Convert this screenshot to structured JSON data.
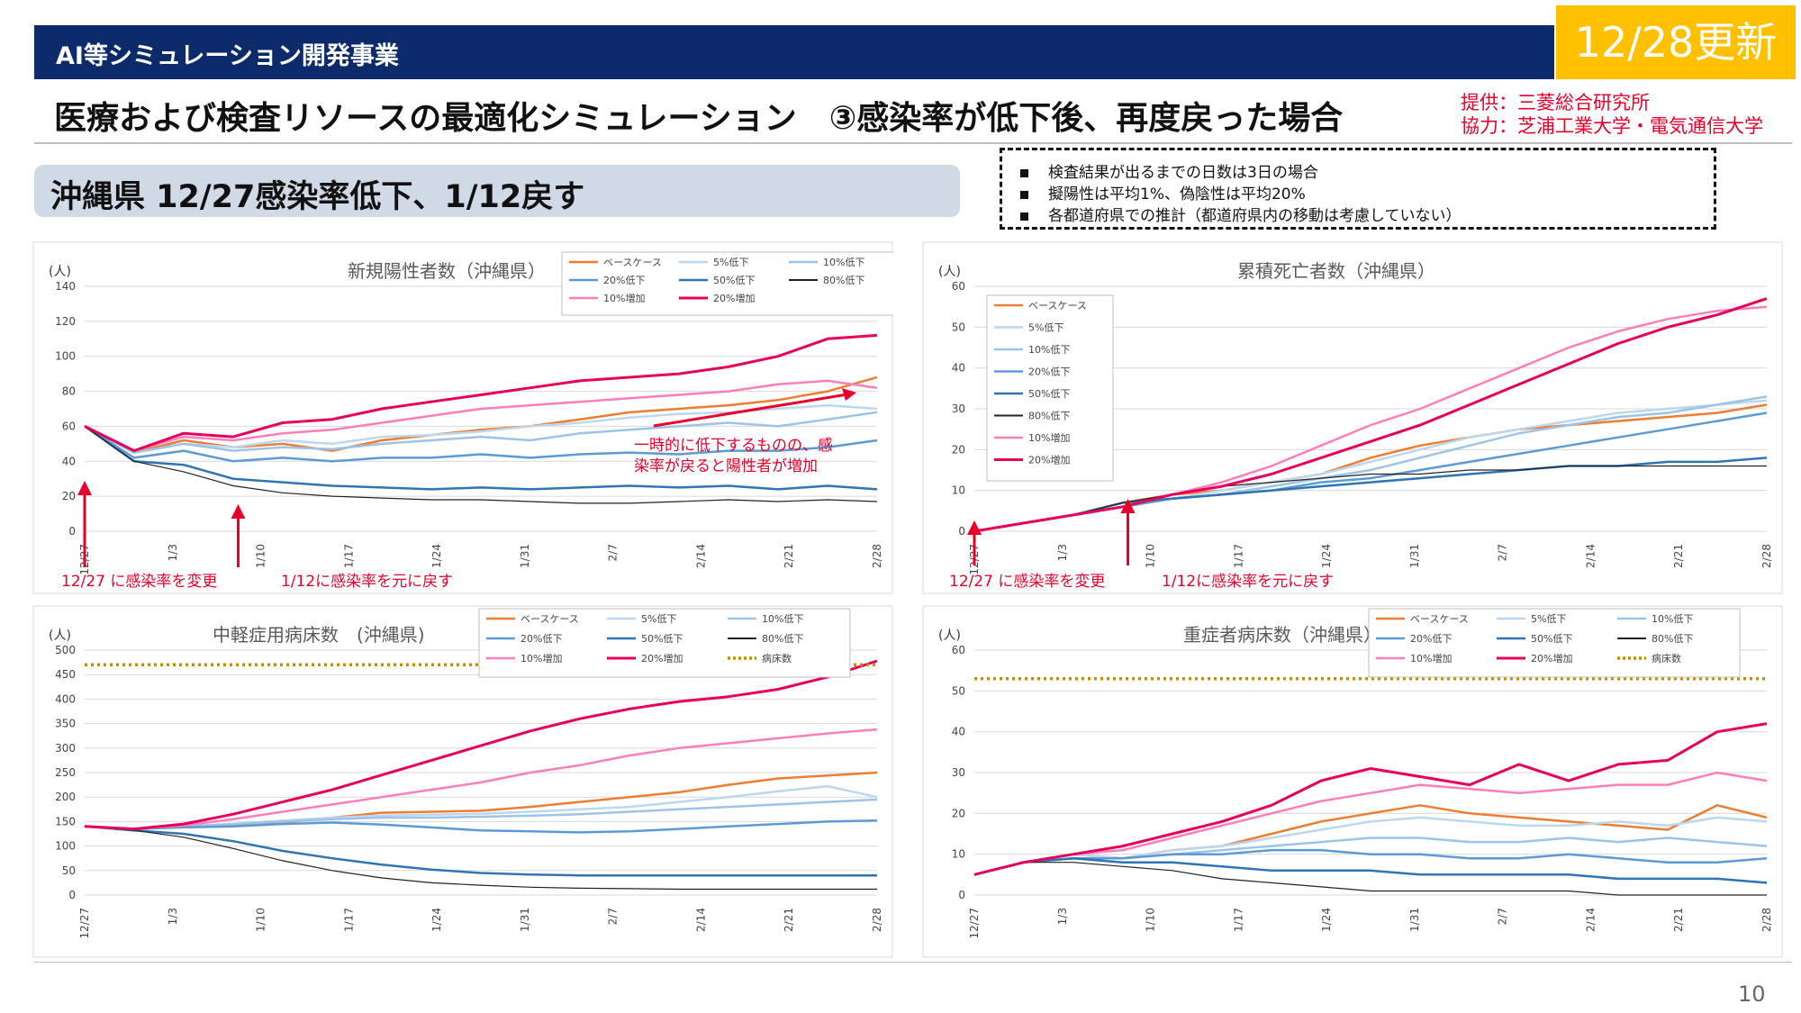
{
  "header": {
    "topbar_title": "AI等シミュレーション開発事業",
    "update_badge": "12/28更新",
    "main_title": "医療および検査リソースの最適化シミュレーション　③感染率が低下後、再度戻った場合",
    "credit_provider": "提供：三菱総合研究所",
    "credit_cooperation": "協力：芝浦工業大学・電気通信大学",
    "region_title": "沖縄県 12/27感染率低下、1/12戻す",
    "notes": [
      "検査結果が出るまでの日数は3日の場合",
      "擬陽性は平均1%、偽陰性は平均20%",
      "各都道府県での推計（都道府県内の移動は考慮していない）"
    ],
    "page_number": "10"
  },
  "chart_data": [
    {
      "type": "line",
      "title": "新規陽性者数（沖縄県）",
      "unit": "(人)",
      "ylim": [
        0,
        140
      ],
      "yticks": [
        0,
        20,
        40,
        60,
        80,
        100,
        120,
        140
      ],
      "xticks": [
        "12/27",
        "1/3",
        "1/10",
        "1/17",
        "1/24",
        "1/31",
        "2/7",
        "2/14",
        "2/21",
        "2/28"
      ],
      "grid": true,
      "legend_position": "top-right",
      "series": [
        {
          "name": "ベースケース",
          "color": "#ed7d31",
          "width": 2.5,
          "values": [
            60,
            45,
            52,
            48,
            50,
            46,
            52,
            55,
            58,
            60,
            64,
            68,
            70,
            72,
            75,
            80,
            88
          ]
        },
        {
          "name": "5%低下",
          "color": "#bdd7ee",
          "width": 2.5,
          "values": [
            60,
            45,
            50,
            48,
            52,
            50,
            54,
            55,
            57,
            60,
            62,
            65,
            67,
            68,
            70,
            72,
            70
          ]
        },
        {
          "name": "10%低下",
          "color": "#9dc3e6",
          "width": 2.5,
          "values": [
            60,
            45,
            50,
            46,
            48,
            47,
            50,
            52,
            54,
            52,
            56,
            58,
            60,
            62,
            60,
            64,
            68
          ]
        },
        {
          "name": "20%低下",
          "color": "#5b9bd5",
          "width": 2.5,
          "values": [
            60,
            42,
            46,
            40,
            42,
            40,
            42,
            42,
            44,
            42,
            44,
            45,
            44,
            46,
            46,
            48,
            52
          ]
        },
        {
          "name": "50%低下",
          "color": "#2e75b6",
          "width": 2.5,
          "values": [
            60,
            40,
            38,
            30,
            28,
            26,
            25,
            24,
            25,
            24,
            25,
            26,
            25,
            26,
            24,
            26,
            24
          ]
        },
        {
          "name": "80%低下",
          "color": "#222222",
          "width": 1.2,
          "values": [
            60,
            40,
            34,
            26,
            22,
            20,
            19,
            18,
            18,
            17,
            16,
            16,
            17,
            18,
            17,
            18,
            17
          ]
        },
        {
          "name": "10%増加",
          "color": "#ff7eb9",
          "width": 2.5,
          "values": [
            60,
            46,
            54,
            52,
            56,
            58,
            62,
            66,
            70,
            72,
            74,
            76,
            78,
            80,
            84,
            86,
            82
          ]
        },
        {
          "name": "20%増加",
          "color": "#e6005c",
          "width": 3,
          "values": [
            60,
            46,
            56,
            54,
            62,
            64,
            70,
            74,
            78,
            82,
            86,
            88,
            90,
            94,
            100,
            110,
            112
          ]
        }
      ],
      "annotations": [
        "12/27 に感染率を変更",
        "1/12に感染率を元に戻す",
        "一時的に低下するものの、感",
        "染率が戻ると陽性者が増加"
      ]
    },
    {
      "type": "line",
      "title": "累積死亡者数（沖縄県）",
      "unit": "(人)",
      "ylim": [
        0,
        60
      ],
      "yticks": [
        0,
        10,
        20,
        30,
        40,
        50,
        60
      ],
      "xticks": [
        "12/27",
        "1/3",
        "1/10",
        "1/17",
        "1/24",
        "1/31",
        "2/7",
        "2/14",
        "2/21",
        "2/28"
      ],
      "grid": true,
      "legend_position": "left",
      "series": [
        {
          "name": "ベースケース",
          "color": "#ed7d31",
          "width": 2.5,
          "values": [
            0,
            2,
            4,
            7,
            9,
            10,
            12,
            14,
            18,
            21,
            23,
            25,
            26,
            27,
            28,
            29,
            31
          ]
        },
        {
          "name": "5%低下",
          "color": "#bdd7ee",
          "width": 2.5,
          "values": [
            0,
            2,
            4,
            6,
            8,
            10,
            12,
            14,
            17,
            20,
            23,
            25,
            27,
            29,
            30,
            31,
            32
          ]
        },
        {
          "name": "10%低下",
          "color": "#9dc3e6",
          "width": 2.5,
          "values": [
            0,
            2,
            4,
            6,
            8,
            9,
            11,
            13,
            15,
            18,
            21,
            24,
            26,
            28,
            29,
            31,
            33
          ]
        },
        {
          "name": "20%低下",
          "color": "#5b9bd5",
          "width": 2.5,
          "values": [
            0,
            2,
            4,
            6,
            8,
            9,
            10,
            12,
            13,
            15,
            17,
            19,
            21,
            23,
            25,
            27,
            29
          ]
        },
        {
          "name": "50%低下",
          "color": "#2e75b6",
          "width": 2.5,
          "values": [
            0,
            2,
            4,
            7,
            8,
            9,
            10,
            11,
            12,
            13,
            14,
            15,
            16,
            16,
            17,
            17,
            18
          ]
        },
        {
          "name": "80%低下",
          "color": "#222222",
          "width": 1.2,
          "values": [
            0,
            2,
            4,
            7,
            9,
            11,
            12,
            13,
            14,
            14,
            15,
            15,
            16,
            16,
            16,
            16,
            16
          ]
        },
        {
          "name": "10%増加",
          "color": "#ff7eb9",
          "width": 2.5,
          "values": [
            0,
            2,
            4,
            6,
            9,
            12,
            16,
            21,
            26,
            30,
            35,
            40,
            45,
            49,
            52,
            54,
            55
          ]
        },
        {
          "name": "20%増加",
          "color": "#e6005c",
          "width": 3,
          "values": [
            0,
            2,
            4,
            6,
            9,
            11,
            14,
            18,
            22,
            26,
            31,
            36,
            41,
            46,
            50,
            53,
            57
          ]
        }
      ],
      "annotations": [
        "12/27 に感染率を変更",
        "1/12に感染率を元に戻す"
      ]
    },
    {
      "type": "line",
      "title": "中軽症用病床数　(沖縄県)",
      "unit": "(人)",
      "ylim": [
        0,
        500
      ],
      "yticks": [
        0,
        50,
        100,
        150,
        200,
        250,
        300,
        350,
        400,
        450,
        500
      ],
      "xticks": [
        "12/27",
        "1/3",
        "1/10",
        "1/17",
        "1/24",
        "1/31",
        "2/7",
        "2/14",
        "2/21",
        "2/28"
      ],
      "grid": true,
      "legend_position": "top-right",
      "series": [
        {
          "name": "ベースケース",
          "color": "#ed7d31",
          "width": 2.5,
          "values": [
            140,
            135,
            140,
            142,
            148,
            158,
            168,
            170,
            172,
            180,
            190,
            200,
            210,
            225,
            238,
            244,
            250
          ]
        },
        {
          "name": "5%低下",
          "color": "#bdd7ee",
          "width": 2.5,
          "values": [
            140,
            135,
            140,
            145,
            152,
            158,
            162,
            164,
            166,
            170,
            175,
            180,
            190,
            200,
            212,
            222,
            200
          ]
        },
        {
          "name": "10%低下",
          "color": "#9dc3e6",
          "width": 2.5,
          "values": [
            140,
            135,
            140,
            145,
            150,
            155,
            158,
            158,
            160,
            162,
            165,
            170,
            175,
            180,
            185,
            190,
            195
          ]
        },
        {
          "name": "20%低下",
          "color": "#5b9bd5",
          "width": 2.5,
          "values": [
            140,
            135,
            138,
            140,
            145,
            148,
            144,
            138,
            132,
            130,
            128,
            130,
            135,
            140,
            145,
            150,
            152
          ]
        },
        {
          "name": "50%低下",
          "color": "#2e75b6",
          "width": 2.5,
          "values": [
            140,
            132,
            125,
            110,
            90,
            75,
            62,
            52,
            45,
            42,
            40,
            40,
            40,
            40,
            40,
            40,
            40
          ]
        },
        {
          "name": "80%低下",
          "color": "#222222",
          "width": 1.2,
          "values": [
            140,
            132,
            118,
            95,
            70,
            50,
            35,
            25,
            20,
            16,
            14,
            13,
            12,
            12,
            12,
            12,
            12
          ]
        },
        {
          "name": "10%増加",
          "color": "#ff7eb9",
          "width": 2.5,
          "values": [
            140,
            135,
            142,
            155,
            170,
            185,
            200,
            215,
            230,
            250,
            265,
            285,
            300,
            310,
            320,
            330,
            338
          ]
        },
        {
          "name": "20%増加",
          "color": "#e6005c",
          "width": 3,
          "values": [
            140,
            135,
            145,
            165,
            190,
            215,
            245,
            275,
            305,
            335,
            360,
            380,
            395,
            405,
            420,
            445,
            478
          ]
        },
        {
          "name": "病床数",
          "color": "#c09000",
          "width": 3.5,
          "dotted": true,
          "values": [
            470,
            470,
            470,
            470,
            470,
            470,
            470,
            470,
            470,
            470,
            470,
            470,
            470,
            470,
            470,
            470,
            470
          ]
        }
      ]
    },
    {
      "type": "line",
      "title": "重症者病床数（沖縄県）",
      "unit": "(人)",
      "ylim": [
        0,
        60
      ],
      "yticks": [
        0,
        10,
        20,
        30,
        40,
        50,
        60
      ],
      "xticks": [
        "12/27",
        "1/3",
        "1/10",
        "1/17",
        "1/24",
        "1/31",
        "2/7",
        "2/14",
        "2/21",
        "2/28"
      ],
      "grid": true,
      "legend_position": "top-right",
      "series": [
        {
          "name": "ベースケース",
          "color": "#ed7d31",
          "width": 2.5,
          "values": [
            5,
            8,
            10,
            9,
            11,
            12,
            15,
            18,
            20,
            22,
            20,
            19,
            18,
            17,
            16,
            22,
            19
          ]
        },
        {
          "name": "5%低下",
          "color": "#bdd7ee",
          "width": 2.5,
          "values": [
            5,
            8,
            10,
            9,
            11,
            12,
            14,
            16,
            18,
            19,
            18,
            17,
            17,
            18,
            17,
            19,
            18
          ]
        },
        {
          "name": "10%低下",
          "color": "#9dc3e6",
          "width": 2.5,
          "values": [
            5,
            8,
            9,
            9,
            10,
            11,
            12,
            13,
            14,
            14,
            13,
            13,
            14,
            13,
            14,
            13,
            12
          ]
        },
        {
          "name": "20%低下",
          "color": "#5b9bd5",
          "width": 2.5,
          "values": [
            5,
            8,
            9,
            9,
            10,
            10,
            11,
            11,
            10,
            10,
            9,
            9,
            10,
            9,
            8,
            8,
            9
          ]
        },
        {
          "name": "50%低下",
          "color": "#2e75b6",
          "width": 2.5,
          "values": [
            5,
            8,
            9,
            8,
            8,
            7,
            6,
            6,
            6,
            5,
            5,
            5,
            5,
            4,
            4,
            4,
            3
          ]
        },
        {
          "name": "80%低下",
          "color": "#222222",
          "width": 1.2,
          "values": [
            5,
            8,
            8,
            7,
            6,
            4,
            3,
            2,
            1,
            1,
            1,
            1,
            1,
            0,
            0,
            0,
            0
          ]
        },
        {
          "name": "10%増加",
          "color": "#ff7eb9",
          "width": 2.5,
          "values": [
            5,
            8,
            10,
            11,
            14,
            17,
            20,
            23,
            25,
            27,
            26,
            25,
            26,
            27,
            27,
            30,
            28
          ]
        },
        {
          "name": "20%増加",
          "color": "#e6005c",
          "width": 3,
          "values": [
            5,
            8,
            10,
            12,
            15,
            18,
            22,
            28,
            31,
            29,
            27,
            32,
            28,
            32,
            33,
            40,
            42
          ]
        },
        {
          "name": "病床数",
          "color": "#c09000",
          "width": 3.5,
          "dotted": true,
          "values": [
            53,
            53,
            53,
            53,
            53,
            53,
            53,
            53,
            53,
            53,
            53,
            53,
            53,
            53,
            53,
            53,
            53
          ]
        }
      ]
    }
  ]
}
